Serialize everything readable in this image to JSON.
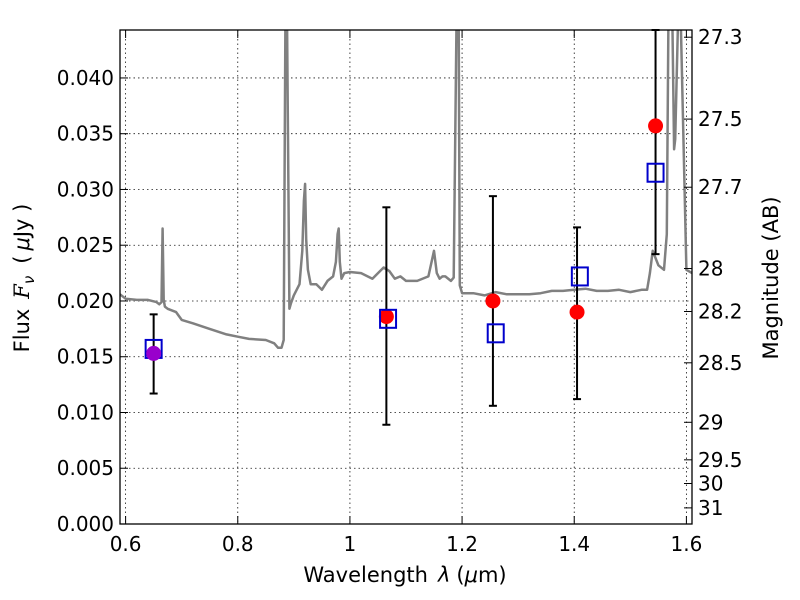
{
  "chart_data": {
    "type": "scatter",
    "xlabel_prefix": "Wavelength",
    "xlabel_symbol": "λ",
    "xlabel_unit_open": "(",
    "xlabel_unit_mu": "μ",
    "xlabel_unit_rest": "m)",
    "ylabel_prefix": "Flux",
    "ylabel_symbol": "F",
    "ylabel_sub": "ν",
    "ylabel_unit_open": "(",
    "ylabel_unit_mu": "μ",
    "ylabel_unit_rest": "Jy )",
    "y2label": "Magnitude (AB)",
    "xlim": [
      0.59,
      1.61
    ],
    "ylim": [
      0.0,
      0.0443
    ],
    "x_ticks": [
      0.6,
      0.8,
      1.0,
      1.2,
      1.4,
      1.6
    ],
    "x_tick_labels": [
      "0.6",
      "0.8",
      "1",
      "1.2",
      "1.4",
      "1.6"
    ],
    "y_ticks": [
      0.0,
      0.005,
      0.01,
      0.015,
      0.02,
      0.025,
      0.03,
      0.035,
      0.04
    ],
    "y_tick_labels": [
      "0.000",
      "0.005",
      "0.010",
      "0.015",
      "0.020",
      "0.025",
      "0.030",
      "0.035",
      "0.040"
    ],
    "y2_ticks": [
      27.3,
      27.5,
      27.7,
      28,
      28.2,
      28.5,
      29,
      29.5,
      30,
      31
    ],
    "y2_tick_labels": [
      "27.3",
      "27.5",
      "27.7",
      "28",
      "28.2",
      "28.5",
      "29",
      "29.5",
      "30",
      "31"
    ],
    "grid": true,
    "colors": {
      "observed": "#ff0000",
      "model": "#0000cc",
      "sed": "#808080",
      "overlap": "#9900cc",
      "errorbar": "#000000"
    },
    "series": [
      {
        "kind": "line",
        "color": "#808080",
        "x": [
          0.59,
          0.6,
          0.62,
          0.64,
          0.655,
          0.66,
          0.664,
          0.666,
          0.668,
          0.67,
          0.675,
          0.69,
          0.7,
          0.72,
          0.75,
          0.78,
          0.8,
          0.82,
          0.85,
          0.865,
          0.872,
          0.878,
          0.882,
          0.885,
          0.886,
          0.888,
          0.892,
          0.895,
          0.9,
          0.91,
          0.915,
          0.918,
          0.92,
          0.922,
          0.925,
          0.93,
          0.94,
          0.95,
          0.96,
          0.97,
          0.975,
          0.978,
          0.98,
          0.982,
          0.985,
          0.99,
          1.0,
          1.02,
          1.04,
          1.05,
          1.06,
          1.07,
          1.08,
          1.09,
          1.1,
          1.12,
          1.14,
          1.15,
          1.155,
          1.16,
          1.165,
          1.17,
          1.18,
          1.185,
          1.19,
          1.192,
          1.194,
          1.196,
          1.2,
          1.205,
          1.22,
          1.24,
          1.26,
          1.28,
          1.3,
          1.32,
          1.34,
          1.36,
          1.38,
          1.4,
          1.42,
          1.44,
          1.46,
          1.48,
          1.5,
          1.52,
          1.53,
          1.535,
          1.54,
          1.55,
          1.56,
          1.565,
          1.568,
          1.57,
          1.575,
          1.578,
          1.58,
          1.585,
          1.59,
          1.6,
          1.61
        ],
        "y": [
          0.0206,
          0.0202,
          0.0201,
          0.0201,
          0.0199,
          0.0197,
          0.0199,
          0.0265,
          0.0201,
          0.0195,
          0.0193,
          0.019,
          0.0183,
          0.018,
          0.0175,
          0.017,
          0.0168,
          0.0166,
          0.0165,
          0.0162,
          0.0158,
          0.0158,
          0.0165,
          0.045,
          0.045,
          0.0445,
          0.0193,
          0.0198,
          0.0205,
          0.0215,
          0.0245,
          0.029,
          0.0305,
          0.0255,
          0.0228,
          0.0215,
          0.0215,
          0.021,
          0.0218,
          0.0222,
          0.0235,
          0.026,
          0.0265,
          0.0235,
          0.022,
          0.0225,
          0.0226,
          0.0225,
          0.022,
          0.0225,
          0.023,
          0.0227,
          0.022,
          0.0222,
          0.0218,
          0.0218,
          0.0222,
          0.0245,
          0.0225,
          0.022,
          0.0222,
          0.0222,
          0.0218,
          0.0221,
          0.045,
          0.045,
          0.045,
          0.0214,
          0.0207,
          0.0207,
          0.0207,
          0.0205,
          0.0208,
          0.0206,
          0.0206,
          0.0206,
          0.0207,
          0.0209,
          0.0209,
          0.021,
          0.0211,
          0.0209,
          0.0209,
          0.021,
          0.0208,
          0.021,
          0.021,
          0.0225,
          0.0245,
          0.0232,
          0.0228,
          0.026,
          0.045,
          0.045,
          0.045,
          0.0336,
          0.0345,
          0.045,
          0.045,
          0.0228,
          0.0225
        ]
      },
      {
        "kind": "points",
        "marker": "circle",
        "color": "#ff0000",
        "x": [
          1.065,
          1.255,
          1.405,
          1.545
        ],
        "y": [
          0.0186,
          0.02,
          0.019,
          0.0357
        ],
        "yerr_low": [
          0.0089,
          0.0106,
          0.0112,
          0.0242
        ],
        "yerr_high": [
          0.0284,
          0.0294,
          0.0266,
          0.0443
        ]
      },
      {
        "kind": "points",
        "marker": "square",
        "color": "#0000cc",
        "x": [
          0.65,
          1.068,
          1.26,
          1.41,
          1.545
        ],
        "y": [
          0.0157,
          0.0184,
          0.0171,
          0.0222,
          0.0315
        ]
      },
      {
        "kind": "points",
        "marker": "circle",
        "color": "#9900cc",
        "x": [
          0.65
        ],
        "y": [
          0.0153
        ],
        "yerr_low": [
          0.0117
        ],
        "yerr_high": [
          0.0188
        ]
      }
    ]
  }
}
